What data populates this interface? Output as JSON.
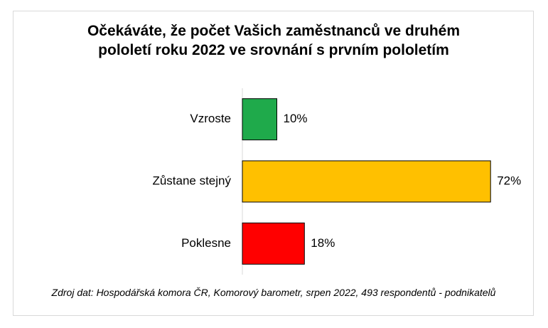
{
  "chart_data": {
    "type": "bar",
    "orientation": "horizontal",
    "title": "Očekáváte, že počet Vašich zaměstnanců ve druhém pololetí roku 2022 ve srovnání s prvním pololetím",
    "categories": [
      "Vzroste",
      "Zůstane stejný",
      "Poklesne"
    ],
    "values": [
      10,
      72,
      18
    ],
    "value_labels": [
      "10%",
      "72%",
      "18%"
    ],
    "colors": [
      "#1faa4b",
      "#ffc000",
      "#ff0000"
    ],
    "source": "Zdroj dat: Hospodářská komora ČR, Komorový barometr, srpen 2022, 493 respondentů - podnikatelů"
  }
}
